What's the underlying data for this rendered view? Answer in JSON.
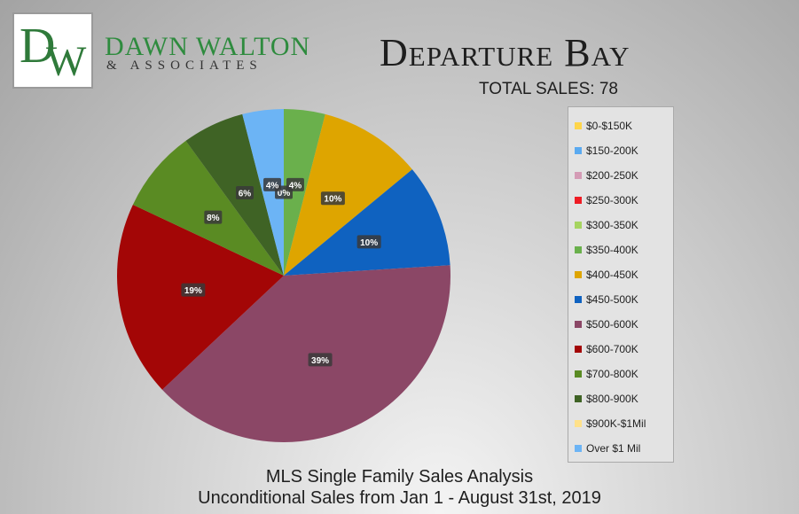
{
  "brand": {
    "monogram_d": "D",
    "monogram_w": "W",
    "name": "DAWN WALTON",
    "sub": "& ASSOCIATES",
    "color": "#2e8b3e"
  },
  "header": {
    "title": "Departure Bay",
    "subtitle": "TOTAL SALES: 78"
  },
  "footer": {
    "line1": "MLS Single Family Sales Analysis",
    "line2": "Unconditional Sales from Jan 1 - August 31st, 2019"
  },
  "chart_data": {
    "type": "pie",
    "title": "Departure Bay",
    "subtitle": "TOTAL SALES: 78",
    "legend_position": "right",
    "slices": [
      {
        "label": "$0-$150K",
        "value": 0,
        "display": "",
        "color": "#ffd54a"
      },
      {
        "label": "$150-200K",
        "value": 0,
        "display": "",
        "color": "#5aaaf0"
      },
      {
        "label": "$200-250K",
        "value": 0,
        "display": "",
        "color": "#d49bb5"
      },
      {
        "label": "$250-300K",
        "value": 0,
        "display": "",
        "color": "#ee1c24"
      },
      {
        "label": "$300-350K",
        "value": 0,
        "display": "0%",
        "color": "#a6d460"
      },
      {
        "label": "$350-400K",
        "value": 4,
        "display": "4%",
        "color": "#6ab04c"
      },
      {
        "label": "$400-450K",
        "value": 10,
        "display": "10%",
        "color": "#dea500"
      },
      {
        "label": "$450-500K",
        "value": 10,
        "display": "10%",
        "color": "#0f62c0"
      },
      {
        "label": "$500-600K",
        "value": 39,
        "display": "39%",
        "color": "#8b4766"
      },
      {
        "label": "$600-700K",
        "value": 19,
        "display": "19%",
        "color": "#a30606"
      },
      {
        "label": "$700-800K",
        "value": 8,
        "display": "8%",
        "color": "#5a8b23"
      },
      {
        "label": "$800-900K",
        "value": 6,
        "display": "6%",
        "color": "#3f6325"
      },
      {
        "label": "$900K-$1Mil",
        "value": 0,
        "display": "",
        "color": "#ffe18a"
      },
      {
        "label": "Over $1 Mil",
        "value": 4,
        "display": "4%",
        "color": "#6cb4f5"
      }
    ]
  }
}
